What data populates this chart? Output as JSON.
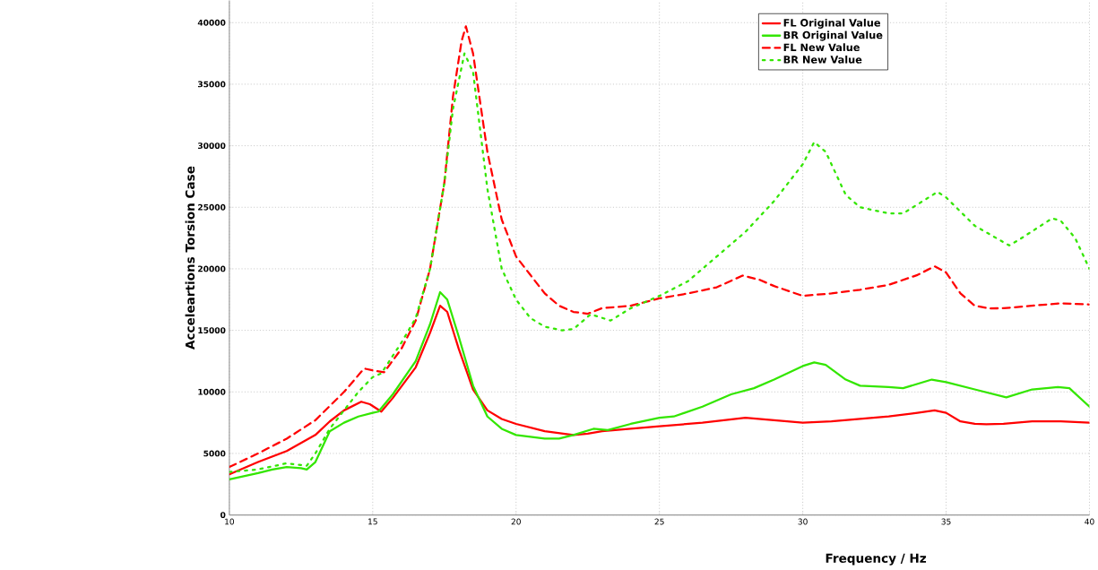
{
  "chart_data": {
    "type": "line",
    "xlabel": "Frequency / Hz",
    "ylabel": "Acceleartions Torsion Case",
    "xlim": [
      10,
      40
    ],
    "xticks": [
      10,
      15,
      20,
      25,
      30,
      35,
      40
    ],
    "ylim": [
      0,
      41800
    ],
    "yticks": [
      0,
      5000,
      10000,
      15000,
      20000,
      25000,
      30000,
      35000,
      40000
    ],
    "grid": true,
    "legend": "top right",
    "series": [
      {
        "name": "FL Original Value",
        "color": "#ff0000",
        "line_style": "solid",
        "x": [
          10,
          11,
          12,
          13,
          13.5,
          14,
          14.6,
          14.9,
          15.3,
          15.7,
          16.5,
          17,
          17.35,
          17.6,
          18,
          18.5,
          19,
          19.5,
          20,
          21,
          22,
          22.5,
          23,
          24,
          25,
          26.5,
          28,
          29,
          30,
          31,
          32,
          33,
          34,
          34.6,
          35,
          35.5,
          36,
          36.4,
          37,
          38,
          39,
          40
        ],
        "values": [
          3300,
          4300,
          5200,
          6500,
          7600,
          8500,
          9200,
          9000,
          8400,
          9500,
          12000,
          14800,
          17000,
          16500,
          13500,
          10200,
          8500,
          7800,
          7400,
          6800,
          6500,
          6600,
          6800,
          7000,
          7200,
          7500,
          7900,
          7700,
          7500,
          7600,
          7800,
          8000,
          8300,
          8500,
          8300,
          7600,
          7400,
          7370,
          7400,
          7600,
          7600,
          7500
        ]
      },
      {
        "name": "BR Original Value",
        "color": "#33e600",
        "line_style": "solid",
        "x": [
          10,
          11,
          11.5,
          12,
          12.5,
          12.7,
          13,
          13.5,
          14,
          14.5,
          15,
          15.2,
          15.7,
          16.5,
          17,
          17.35,
          17.6,
          18,
          18.5,
          19,
          19.5,
          20,
          21,
          21.5,
          22,
          22.7,
          23.2,
          24,
          25,
          25.5,
          26.5,
          27.5,
          28.3,
          29,
          30,
          30.4,
          30.8,
          31.5,
          32,
          33,
          33.5,
          34.5,
          35,
          36,
          37.1,
          38,
          38.9,
          39.3,
          40
        ],
        "values": [
          2900,
          3400,
          3700,
          3900,
          3800,
          3700,
          4300,
          6800,
          7500,
          8000,
          8300,
          8400,
          9800,
          12500,
          15500,
          18100,
          17500,
          14500,
          10500,
          8000,
          7000,
          6500,
          6200,
          6200,
          6500,
          7000,
          6900,
          7400,
          7900,
          8000,
          8800,
          9800,
          10300,
          11000,
          12100,
          12400,
          12200,
          11000,
          10500,
          10400,
          10300,
          11000,
          10800,
          10200,
          9550,
          10200,
          10400,
          10300,
          8800
        ]
      },
      {
        "name": "FL New Value",
        "color": "#ff0000",
        "line_style": "dashed",
        "x": [
          10,
          11,
          12,
          13,
          14,
          14.7,
          15.1,
          15.4,
          16,
          16.5,
          17,
          17.5,
          17.8,
          18.1,
          18.25,
          18.5,
          19,
          19.5,
          20,
          20.5,
          21,
          21.5,
          22,
          22.5,
          23,
          24,
          25,
          26,
          27,
          27.9,
          28.5,
          29,
          30,
          31,
          32,
          33,
          34,
          34.6,
          35,
          35.5,
          36,
          36.5,
          37,
          38,
          39,
          40
        ],
        "values": [
          3900,
          5000,
          6200,
          7700,
          10000,
          11900,
          11700,
          11600,
          13500,
          15800,
          20000,
          27000,
          34000,
          38500,
          39700,
          37500,
          29500,
          24000,
          21000,
          19500,
          18000,
          17000,
          16500,
          16350,
          16800,
          17000,
          17600,
          18000,
          18500,
          19450,
          19100,
          18600,
          17800,
          18000,
          18300,
          18700,
          19500,
          20200,
          19700,
          18000,
          17000,
          16780,
          16800,
          17000,
          17200,
          17100
        ]
      },
      {
        "name": "BR New Value",
        "color": "#33e600",
        "line_style": "dotted",
        "x": [
          10,
          11,
          12,
          12.7,
          13,
          13.5,
          14,
          14.5,
          15,
          15.3,
          16,
          16.5,
          17,
          17.5,
          17.8,
          18.2,
          18.5,
          19,
          19.5,
          20,
          20.5,
          21,
          21.6,
          22,
          22.6,
          23.3,
          24,
          25,
          26,
          27,
          28,
          29,
          30,
          30.4,
          30.8,
          31.5,
          32,
          33,
          33.5,
          34.7,
          35,
          36,
          37.2,
          37.5,
          38.7,
          39,
          39.5,
          40
        ],
        "values": [
          3500,
          3700,
          4200,
          4000,
          5000,
          7000,
          8500,
          10000,
          11200,
          11500,
          14000,
          16000,
          20000,
          27000,
          33000,
          37500,
          36000,
          26500,
          20000,
          17500,
          16000,
          15300,
          15000,
          15100,
          16300,
          15800,
          16800,
          17800,
          19000,
          21000,
          23000,
          25500,
          28500,
          30300,
          29500,
          26000,
          25000,
          24500,
          24500,
          26250,
          25800,
          23500,
          21900,
          22300,
          24100,
          23900,
          22500,
          20000
        ]
      }
    ]
  }
}
